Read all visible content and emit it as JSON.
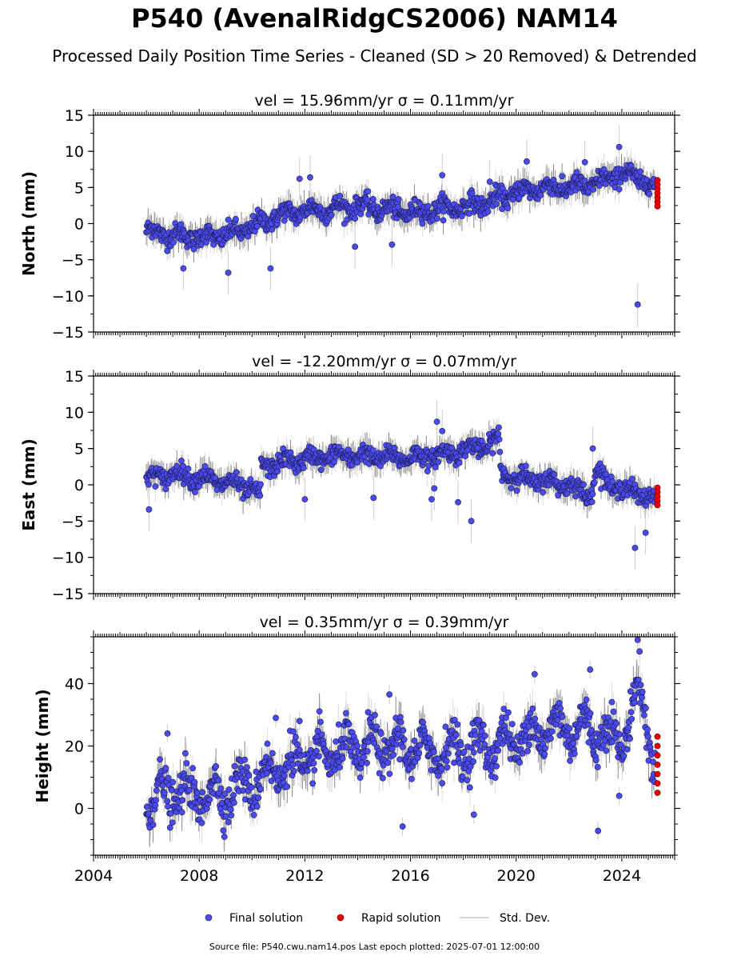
{
  "figure": {
    "title": "P540 (AvenalRidgCS2006) NAM14",
    "subtitle": "Processed Daily Position Time Series - Cleaned (SD > 20 Removed) & Detrended",
    "footer": "Source file: P540.cwu.nam14.pos  Last epoch plotted: 2025-07-01 12:00:00"
  },
  "legend": {
    "final": "Final solution",
    "rapid": "Rapid solution",
    "stddev": "Std. Dev."
  },
  "colors": {
    "final": "#4a4aee",
    "rapid": "#ee0000",
    "stddev": "#cccccc",
    "stddev_dark": "#555555"
  },
  "chart_data": [
    {
      "type": "scatter",
      "panel": "north",
      "title": "vel = 15.96mm/yr   σ = 0.11mm/yr",
      "ylabel": "North (mm)",
      "xlabel": "",
      "xlim": [
        2004.0,
        2026.0
      ],
      "ylim": [
        -15,
        15
      ],
      "yticks": [
        -15,
        -10,
        -5,
        0,
        5,
        10,
        15
      ],
      "ytick_labels": [
        "−15",
        "−10",
        "−5",
        "0",
        "5",
        "10",
        "15"
      ],
      "trend": [
        [
          2006.0,
          -1.0
        ],
        [
          2007.0,
          -1.6
        ],
        [
          2008.0,
          -1.9
        ],
        [
          2009.0,
          -1.6
        ],
        [
          2010.0,
          -0.5
        ],
        [
          2011.0,
          1.2
        ],
        [
          2012.0,
          1.8
        ],
        [
          2013.0,
          2.0
        ],
        [
          2014.0,
          2.5
        ],
        [
          2015.0,
          2.0
        ],
        [
          2016.0,
          1.5
        ],
        [
          2017.0,
          2.0
        ],
        [
          2018.0,
          2.4
        ],
        [
          2019.0,
          3.0
        ],
        [
          2020.0,
          4.3
        ],
        [
          2021.0,
          5.0
        ],
        [
          2022.0,
          5.0
        ],
        [
          2023.0,
          5.5
        ],
        [
          2024.0,
          7.0
        ],
        [
          2025.0,
          5.8
        ],
        [
          2025.25,
          4.5
        ]
      ],
      "scatter_sd": 1.2,
      "outliers": [
        [
          2007.4,
          -6.2
        ],
        [
          2009.1,
          -6.8
        ],
        [
          2010.7,
          -6.2
        ],
        [
          2011.8,
          6.2
        ],
        [
          2012.2,
          6.4
        ],
        [
          2015.3,
          -2.9
        ],
        [
          2013.9,
          -3.2
        ],
        [
          2017.2,
          6.7
        ],
        [
          2020.4,
          8.6
        ],
        [
          2022.6,
          8.5
        ],
        [
          2023.9,
          10.6
        ],
        [
          2024.6,
          -11.2
        ],
        [
          2019.0,
          5.8
        ]
      ],
      "rapid": [
        [
          2025.35,
          2.4
        ],
        [
          2025.35,
          3.0
        ],
        [
          2025.35,
          3.6
        ],
        [
          2025.35,
          4.2
        ],
        [
          2025.35,
          4.8
        ],
        [
          2025.35,
          5.4
        ],
        [
          2025.35,
          6.0
        ]
      ]
    },
    {
      "type": "scatter",
      "panel": "east",
      "title": "vel = -12.20mm/yr   σ = 0.07mm/yr",
      "ylabel": "East (mm)",
      "xlabel": "",
      "xlim": [
        2004.0,
        2026.0
      ],
      "ylim": [
        -15,
        15
      ],
      "yticks": [
        -15,
        -10,
        -5,
        0,
        5,
        10,
        15
      ],
      "ytick_labels": [
        "−15",
        "−10",
        "−5",
        "0",
        "5",
        "10",
        "15"
      ],
      "trend": [
        [
          2006.0,
          0.8
        ],
        [
          2007.0,
          1.5
        ],
        [
          2008.0,
          1.0
        ],
        [
          2009.0,
          0.3
        ],
        [
          2010.0,
          -0.5
        ],
        [
          2010.3,
          -2.0
        ],
        [
          2010.35,
          2.5
        ],
        [
          2011.0,
          3.0
        ],
        [
          2012.0,
          3.5
        ],
        [
          2013.0,
          4.0
        ],
        [
          2014.0,
          4.0
        ],
        [
          2015.0,
          3.8
        ],
        [
          2016.0,
          3.8
        ],
        [
          2017.0,
          4.0
        ],
        [
          2018.0,
          4.8
        ],
        [
          2019.0,
          5.5
        ],
        [
          2019.35,
          6.5
        ],
        [
          2019.4,
          2.0
        ],
        [
          2020.0,
          1.0
        ],
        [
          2021.0,
          0.5
        ],
        [
          2022.0,
          0.0
        ],
        [
          2022.8,
          -1.5
        ],
        [
          2023.0,
          2.0
        ],
        [
          2023.5,
          0.0
        ],
        [
          2024.5,
          -1.0
        ],
        [
          2025.25,
          -2.0
        ]
      ],
      "scatter_sd": 1.1,
      "outliers": [
        [
          2006.1,
          -3.4
        ],
        [
          2012.0,
          -2.0
        ],
        [
          2014.6,
          -1.8
        ],
        [
          2016.8,
          -2.0
        ],
        [
          2017.0,
          8.7
        ],
        [
          2017.2,
          7.4
        ],
        [
          2017.8,
          -2.4
        ],
        [
          2018.3,
          -5.0
        ],
        [
          2022.9,
          5.0
        ],
        [
          2024.5,
          -8.7
        ],
        [
          2024.9,
          -6.6
        ],
        [
          2016.9,
          -0.5
        ]
      ],
      "rapid": [
        [
          2025.35,
          -0.4
        ],
        [
          2025.35,
          -1.0
        ],
        [
          2025.35,
          -1.6
        ],
        [
          2025.35,
          -2.2
        ],
        [
          2025.35,
          -2.8
        ]
      ]
    },
    {
      "type": "scatter",
      "panel": "height",
      "title": "vel = 0.35mm/yr   σ = 0.39mm/yr",
      "ylabel": "Height (mm)",
      "xlabel": "",
      "xlim": [
        2004.0,
        2026.0
      ],
      "ylim": [
        -15,
        55
      ],
      "yticks": [
        0,
        20,
        40
      ],
      "ytick_labels": [
        "0",
        "20",
        "40"
      ],
      "xticks": [
        2004,
        2008,
        2012,
        2016,
        2020,
        2024
      ],
      "xtick_labels": [
        "2004",
        "2008",
        "2012",
        "2016",
        "2020",
        "2024"
      ],
      "trend": [
        [
          2006.0,
          3.0
        ],
        [
          2007.0,
          5.0
        ],
        [
          2008.0,
          4.0
        ],
        [
          2009.0,
          5.0
        ],
        [
          2010.0,
          8.0
        ],
        [
          2011.0,
          13.0
        ],
        [
          2012.0,
          15.0
        ],
        [
          2013.0,
          18.0
        ],
        [
          2014.0,
          19.0
        ],
        [
          2015.0,
          20.0
        ],
        [
          2016.0,
          19.0
        ],
        [
          2017.0,
          18.0
        ],
        [
          2018.0,
          19.0
        ],
        [
          2019.0,
          20.0
        ],
        [
          2020.0,
          22.0
        ],
        [
          2021.0,
          25.0
        ],
        [
          2022.0,
          26.0
        ],
        [
          2023.0,
          25.0
        ],
        [
          2024.0,
          22.0
        ],
        [
          2024.7,
          38.0
        ],
        [
          2025.25,
          15.0
        ]
      ],
      "scatter_sd": 6.0,
      "outliers": [
        [
          2006.8,
          24.0
        ],
        [
          2010.9,
          29.0
        ],
        [
          2011.8,
          28.0
        ],
        [
          2015.2,
          36.5
        ],
        [
          2015.7,
          -5.8
        ],
        [
          2018.4,
          -2.0
        ],
        [
          2020.7,
          43.0
        ],
        [
          2022.8,
          44.5
        ],
        [
          2023.1,
          -7.2
        ],
        [
          2024.6,
          54.0
        ],
        [
          2023.9,
          4.0
        ]
      ],
      "rapid": [
        [
          2025.35,
          5.0
        ],
        [
          2025.35,
          8.0
        ],
        [
          2025.35,
          11.0
        ],
        [
          2025.35,
          14.0
        ],
        [
          2025.35,
          17.0
        ],
        [
          2025.35,
          20.0
        ],
        [
          2025.35,
          23.0
        ]
      ]
    }
  ]
}
